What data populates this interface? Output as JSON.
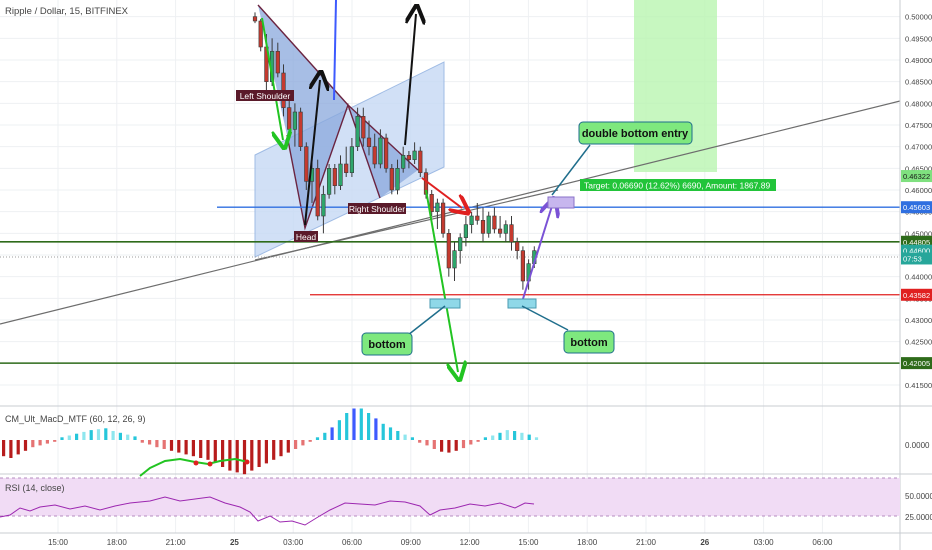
{
  "symbol_title": "Ripple / Dollar, 15, BITFINEX",
  "price_axis": {
    "ticks": [
      "0.50000",
      "0.49500",
      "0.49000",
      "0.48500",
      "0.48000",
      "0.47500",
      "0.47000",
      "0.46500",
      "0.46000",
      "0.45500",
      "0.45000",
      "0.44500",
      "0.44000",
      "0.43500",
      "0.43000",
      "0.42500",
      "0.42000",
      "0.41500"
    ],
    "ylim": [
      0.412,
      0.502
    ],
    "badges": [
      {
        "text": "0.46322",
        "value": 0.46322,
        "bg": "#7fe07f",
        "fg": "#1a1a1a"
      },
      {
        "text": "0.45603",
        "value": 0.45603,
        "bg": "#2f6fe0",
        "fg": "#ffffff"
      },
      {
        "text": "0.44805",
        "value": 0.44805,
        "bg": "#2e6b1a",
        "fg": "#ffffff"
      },
      {
        "text": "0.44600",
        "value": 0.446,
        "bg": "#26a69a",
        "fg": "#ffffff"
      },
      {
        "text": "07:53",
        "value": 0.4442,
        "bg": "#26a69a",
        "fg": "#ffffff"
      },
      {
        "text": "0.43582",
        "value": 0.43582,
        "bg": "#e02020",
        "fg": "#ffffff"
      },
      {
        "text": "0.42005",
        "value": 0.42005,
        "bg": "#2e6b1a",
        "fg": "#ffffff"
      }
    ]
  },
  "time_axis": {
    "labels": [
      "15:00",
      "18:00",
      "21:00",
      "25",
      "03:00",
      "06:00",
      "09:00",
      "12:00",
      "15:00",
      "18:00",
      "21:00",
      "26",
      "03:00",
      "06:00"
    ],
    "bold": [
      "25",
      "26"
    ]
  },
  "annotations": {
    "left_shoulder": "Left Shoulder",
    "head": "Head",
    "right_shoulder": "Right Shoulder",
    "bottom_1": "bottom",
    "bottom_2": "bottom",
    "double_bottom_entry": "double bottom entry",
    "target": "Target: 0.06690 (12.62%) 6690, Amount: 1867.89"
  },
  "horizontal_levels": [
    {
      "value": 0.45603,
      "color": "#2f6fe0"
    },
    {
      "value": 0.44805,
      "color": "#2e6b1a"
    },
    {
      "value": 0.43582,
      "color": "#e02020"
    },
    {
      "value": 0.42005,
      "color": "#2e6b1a"
    }
  ],
  "macd_panel": {
    "label": "CM_Ult_MacD_MTF (60, 12, 26, 9)",
    "ticks": [
      "0.0000"
    ],
    "histogram_colors": {
      "up_strong": "#26c6da",
      "up_weak": "#8ee6ee",
      "down_strong": "#3d5afe",
      "down_weak": "#8fa0ff",
      "neg_strong": "#b71c1c",
      "neg_weak": "#e57373"
    }
  },
  "rsi_panel": {
    "label": "RSI (14, close)",
    "ticks": [
      "50.0000",
      "25.0000"
    ],
    "upper": 70,
    "lower": 30,
    "line_color": "#9c27b0",
    "band_color": "#f1dcf5"
  },
  "chart_data": {
    "type": "candlestick",
    "instrument": "Ripple / Dollar",
    "interval": "15",
    "exchange": "BITFINEX",
    "candles": [
      {
        "o": 0.5,
        "h": 0.501,
        "l": 0.4985,
        "c": 0.499
      },
      {
        "o": 0.499,
        "h": 0.4995,
        "l": 0.492,
        "c": 0.493
      },
      {
        "o": 0.493,
        "h": 0.496,
        "l": 0.483,
        "c": 0.485
      },
      {
        "o": 0.485,
        "h": 0.495,
        "l": 0.484,
        "c": 0.492
      },
      {
        "o": 0.492,
        "h": 0.494,
        "l": 0.486,
        "c": 0.487
      },
      {
        "o": 0.487,
        "h": 0.489,
        "l": 0.477,
        "c": 0.479
      },
      {
        "o": 0.479,
        "h": 0.483,
        "l": 0.472,
        "c": 0.474
      },
      {
        "o": 0.474,
        "h": 0.48,
        "l": 0.47,
        "c": 0.478
      },
      {
        "o": 0.478,
        "h": 0.479,
        "l": 0.469,
        "c": 0.47
      },
      {
        "o": 0.47,
        "h": 0.471,
        "l": 0.46,
        "c": 0.462
      },
      {
        "o": 0.462,
        "h": 0.468,
        "l": 0.457,
        "c": 0.465
      },
      {
        "o": 0.465,
        "h": 0.467,
        "l": 0.453,
        "c": 0.454
      },
      {
        "o": 0.454,
        "h": 0.461,
        "l": 0.45,
        "c": 0.459
      },
      {
        "o": 0.459,
        "h": 0.466,
        "l": 0.458,
        "c": 0.465
      },
      {
        "o": 0.465,
        "h": 0.466,
        "l": 0.459,
        "c": 0.461
      },
      {
        "o": 0.461,
        "h": 0.468,
        "l": 0.46,
        "c": 0.466
      },
      {
        "o": 0.466,
        "h": 0.47,
        "l": 0.463,
        "c": 0.464
      },
      {
        "o": 0.464,
        "h": 0.472,
        "l": 0.463,
        "c": 0.47
      },
      {
        "o": 0.47,
        "h": 0.479,
        "l": 0.469,
        "c": 0.477
      },
      {
        "o": 0.477,
        "h": 0.479,
        "l": 0.47,
        "c": 0.472
      },
      {
        "o": 0.472,
        "h": 0.476,
        "l": 0.468,
        "c": 0.47
      },
      {
        "o": 0.47,
        "h": 0.473,
        "l": 0.465,
        "c": 0.466
      },
      {
        "o": 0.466,
        "h": 0.474,
        "l": 0.465,
        "c": 0.472
      },
      {
        "o": 0.472,
        "h": 0.473,
        "l": 0.464,
        "c": 0.465
      },
      {
        "o": 0.465,
        "h": 0.466,
        "l": 0.459,
        "c": 0.46
      },
      {
        "o": 0.46,
        "h": 0.467,
        "l": 0.459,
        "c": 0.465
      },
      {
        "o": 0.465,
        "h": 0.47,
        "l": 0.464,
        "c": 0.468
      },
      {
        "o": 0.468,
        "h": 0.469,
        "l": 0.465,
        "c": 0.467
      },
      {
        "o": 0.467,
        "h": 0.471,
        "l": 0.466,
        "c": 0.469
      },
      {
        "o": 0.469,
        "h": 0.47,
        "l": 0.463,
        "c": 0.464
      },
      {
        "o": 0.464,
        "h": 0.465,
        "l": 0.458,
        "c": 0.459
      },
      {
        "o": 0.459,
        "h": 0.46,
        "l": 0.454,
        "c": 0.455
      },
      {
        "o": 0.455,
        "h": 0.458,
        "l": 0.451,
        "c": 0.457
      },
      {
        "o": 0.457,
        "h": 0.458,
        "l": 0.449,
        "c": 0.45
      },
      {
        "o": 0.45,
        "h": 0.451,
        "l": 0.44,
        "c": 0.442
      },
      {
        "o": 0.442,
        "h": 0.448,
        "l": 0.439,
        "c": 0.446
      },
      {
        "o": 0.446,
        "h": 0.45,
        "l": 0.443,
        "c": 0.449
      },
      {
        "o": 0.449,
        "h": 0.454,
        "l": 0.447,
        "c": 0.452
      },
      {
        "o": 0.452,
        "h": 0.455,
        "l": 0.45,
        "c": 0.454
      },
      {
        "o": 0.454,
        "h": 0.457,
        "l": 0.452,
        "c": 0.453
      },
      {
        "o": 0.453,
        "h": 0.456,
        "l": 0.448,
        "c": 0.45
      },
      {
        "o": 0.45,
        "h": 0.455,
        "l": 0.449,
        "c": 0.454
      },
      {
        "o": 0.454,
        "h": 0.456,
        "l": 0.45,
        "c": 0.451
      },
      {
        "o": 0.451,
        "h": 0.454,
        "l": 0.449,
        "c": 0.45
      },
      {
        "o": 0.45,
        "h": 0.453,
        "l": 0.448,
        "c": 0.452
      },
      {
        "o": 0.452,
        "h": 0.454,
        "l": 0.446,
        "c": 0.448
      },
      {
        "o": 0.448,
        "h": 0.449,
        "l": 0.444,
        "c": 0.446
      },
      {
        "o": 0.446,
        "h": 0.447,
        "l": 0.437,
        "c": 0.439
      },
      {
        "o": 0.439,
        "h": 0.444,
        "l": 0.437,
        "c": 0.443
      },
      {
        "o": 0.443,
        "h": 0.447,
        "l": 0.442,
        "c": 0.446
      }
    ],
    "levels": [
      0.45603,
      0.44805,
      0.43582,
      0.42005
    ],
    "xlim_labels": [
      "15:00",
      "06:00"
    ],
    "ylim": [
      0.412,
      0.502
    ]
  }
}
